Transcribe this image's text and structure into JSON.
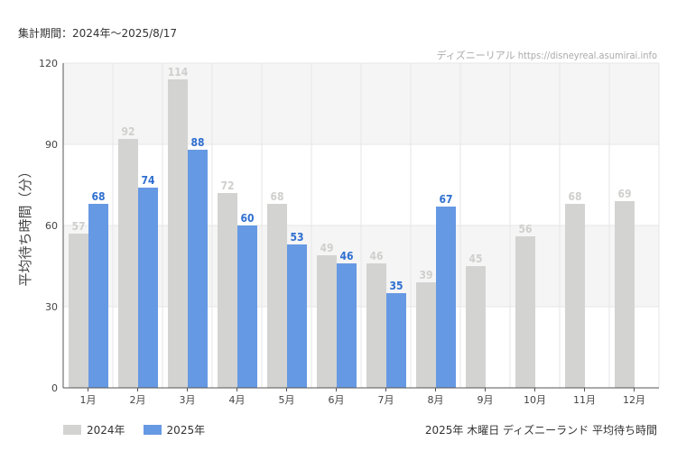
{
  "header": {
    "period": "集計期間：2024年～2025/8/17",
    "source": "ディズニーリアル https://disneyreal.asumirai.info"
  },
  "caption": "2025年 木曜日 ディズニーランド 平均待ち時間",
  "colors": {
    "series_2024": "#d3d3d1",
    "series_2025": "#6699e3",
    "label_2024": "#cfcfcd",
    "label_2025": "#2f6fd0",
    "band": "#f5f5f5",
    "grid": "#e6e6e6",
    "axis": "#555555"
  },
  "chart_data": {
    "type": "bar",
    "categories": [
      "1月",
      "2月",
      "3月",
      "4月",
      "5月",
      "6月",
      "7月",
      "8月",
      "9月",
      "10月",
      "11月",
      "12月"
    ],
    "series": [
      {
        "name": "2024年",
        "values": [
          57,
          92,
          114,
          72,
          68,
          49,
          46,
          39,
          45,
          56,
          68,
          69
        ]
      },
      {
        "name": "2025年",
        "values": [
          68,
          74,
          88,
          60,
          53,
          46,
          35,
          67,
          null,
          null,
          null,
          null
        ]
      }
    ],
    "ylabel": "平均待ち時間（分）",
    "ylim": [
      0,
      120
    ],
    "yticks": [
      0,
      30,
      60,
      90,
      120
    ],
    "grid": true,
    "legend_position": "bottom-left"
  }
}
